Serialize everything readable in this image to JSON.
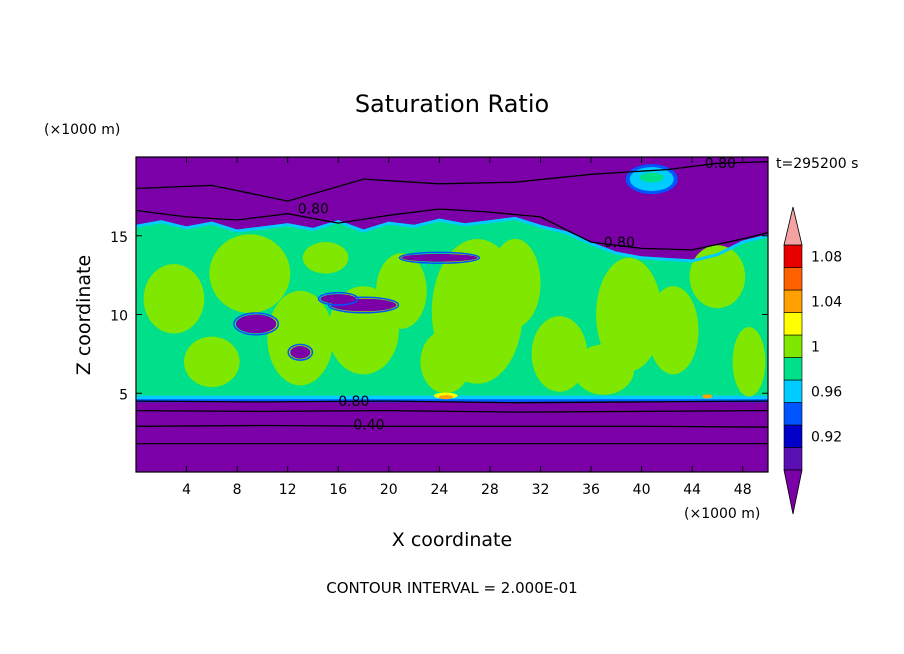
{
  "chart_data": {
    "type": "heatmap",
    "title": "Saturation Ratio",
    "xlabel": "X coordinate",
    "ylabel": "Z coordinate",
    "x_unit": "(×1000 m)",
    "y_unit": "(×1000 m)",
    "time_label": "t=295200 s",
    "footer": "CONTOUR INTERVAL = 2.000E-01",
    "xlim": [
      0,
      50
    ],
    "ylim": [
      0,
      20
    ],
    "x_ticks": [
      4,
      8,
      12,
      16,
      20,
      24,
      28,
      32,
      36,
      40,
      44,
      48
    ],
    "y_ticks": [
      5,
      10,
      15
    ],
    "contour_labels": [
      "0.80",
      "0.80",
      "0.80",
      "0.80",
      "0.40"
    ],
    "colorbar": {
      "levels": [
        0.9,
        0.92,
        0.94,
        0.96,
        0.98,
        1.0,
        1.02,
        1.04,
        1.06,
        1.08,
        1.1
      ],
      "tick_labels": [
        "0.92",
        "0.96",
        "1",
        "1.04",
        "1.08"
      ],
      "tick_values": [
        0.92,
        0.96,
        1.0,
        1.04,
        1.08
      ],
      "under_color": "#7b00a8",
      "over_color": "#f4a2a2",
      "colors": [
        "#5a0fb0",
        "#0000c8",
        "#0055ff",
        "#00ccff",
        "#00e08a",
        "#80e800",
        "#ffff00",
        "#ffa000",
        "#ff6000",
        "#e80000"
      ]
    },
    "regions": {
      "subsaturated_low": "#7b00a8",
      "cloud_layer": "#00e08a",
      "supersaturated_patches": "#80e800"
    }
  }
}
